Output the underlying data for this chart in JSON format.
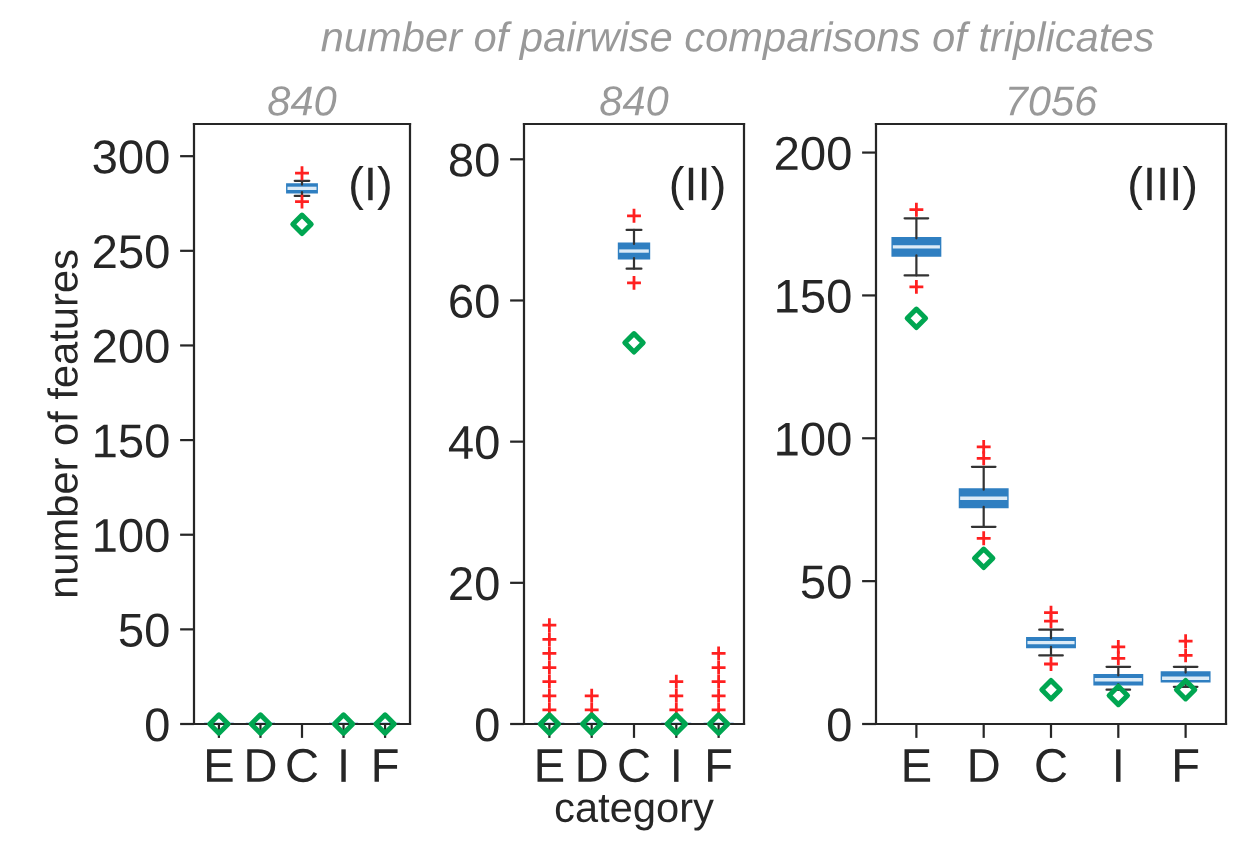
{
  "chart_data": [
    {
      "type": "box",
      "title": "840",
      "ylabel": "number of features",
      "annotations": [
        "number of pairwise comparisons of triplicates",
        "(I)"
      ],
      "categories": [
        "E",
        "D",
        "C",
        "I",
        "F"
      ],
      "ylim": [
        0,
        317
      ],
      "yticks": [
        0,
        50,
        100,
        150,
        200,
        250,
        300
      ],
      "grid": false,
      "legend": false,
      "series": [
        {
          "color": "#2f7fc1",
          "boxes": [
            {
              "low": 0,
              "q1": 0,
              "median": 0,
              "q3": 0,
              "high": 0
            },
            {
              "low": 0,
              "q1": 0,
              "median": 0,
              "q3": 0,
              "high": 0
            },
            {
              "low": 279,
              "q1": 281,
              "median": 283,
              "q3": 285,
              "high": 287,
              "outliers": [
                291,
                276
              ]
            },
            {
              "low": 0,
              "q1": 0,
              "median": 0,
              "q3": 0,
              "high": 0
            },
            {
              "low": 0,
              "q1": 0,
              "median": 0,
              "q3": 0,
              "high": 0
            }
          ]
        },
        {
          "type": "scatter",
          "color": "#00a651",
          "marker": "diamond",
          "x": [
            "E",
            "D",
            "C",
            "I",
            "F"
          ],
          "values": [
            0,
            0,
            264,
            0,
            0
          ]
        }
      ]
    },
    {
      "type": "box",
      "title": "840",
      "xlabel": "category",
      "annotations": [
        "(II)"
      ],
      "categories": [
        "E",
        "D",
        "C",
        "I",
        "F"
      ],
      "ylim": [
        0,
        85
      ],
      "yticks": [
        0,
        20,
        40,
        60,
        80
      ],
      "grid": false,
      "legend": false,
      "series": [
        {
          "color": "#2f7fc1",
          "boxes": [
            {
              "low": 0,
              "q1": 0,
              "median": 0,
              "q3": 0,
              "high": 0,
              "outliers": [
                2,
                4,
                6,
                8,
                10,
                12,
                14
              ]
            },
            {
              "low": 0,
              "q1": 0,
              "median": 0,
              "q3": 0,
              "high": 0,
              "outliers": [
                2,
                4
              ]
            },
            {
              "low": 64.5,
              "q1": 66,
              "median": 67,
              "q3": 68,
              "high": 70,
              "outliers": [
                72,
                62.5
              ]
            },
            {
              "low": 0,
              "q1": 0,
              "median": 0,
              "q3": 0,
              "high": 0,
              "outliers": [
                2,
                4,
                6
              ]
            },
            {
              "low": 0,
              "q1": 0,
              "median": 0,
              "q3": 0,
              "high": 0,
              "outliers": [
                2,
                4,
                6,
                8,
                10
              ]
            }
          ]
        },
        {
          "type": "scatter",
          "color": "#00a651",
          "marker": "diamond",
          "x": [
            "E",
            "D",
            "C",
            "I",
            "F"
          ],
          "values": [
            0,
            0,
            54,
            0,
            0
          ]
        }
      ]
    },
    {
      "type": "box",
      "title": "7056",
      "annotations": [
        "(III)"
      ],
      "categories": [
        "E",
        "D",
        "C",
        "I",
        "F"
      ],
      "ylim": [
        0,
        210
      ],
      "yticks": [
        0,
        50,
        100,
        150,
        200
      ],
      "grid": false,
      "legend": false,
      "series": [
        {
          "color": "#2f7fc1",
          "boxes": [
            {
              "low": 157,
              "q1": 164,
              "median": 167,
              "q3": 170,
              "high": 177,
              "outliers": [
                180,
                153
              ]
            },
            {
              "low": 69,
              "q1": 76,
              "median": 79,
              "q3": 82,
              "high": 90,
              "outliers": [
                93,
                97,
                65
              ]
            },
            {
              "low": 24,
              "q1": 27,
              "median": 28.5,
              "q3": 30,
              "high": 33,
              "outliers": [
                36,
                39,
                21
              ]
            },
            {
              "low": 12,
              "q1": 14,
              "median": 15.5,
              "q3": 17,
              "high": 20,
              "outliers": [
                23,
                27
              ]
            },
            {
              "low": 13,
              "q1": 15,
              "median": 16,
              "q3": 18,
              "high": 20,
              "outliers": [
                24,
                29
              ]
            }
          ]
        },
        {
          "type": "scatter",
          "color": "#00a651",
          "marker": "diamond",
          "x": [
            "E",
            "D",
            "C",
            "I",
            "F"
          ],
          "values": [
            142,
            58,
            12,
            10,
            12
          ]
        }
      ]
    }
  ]
}
